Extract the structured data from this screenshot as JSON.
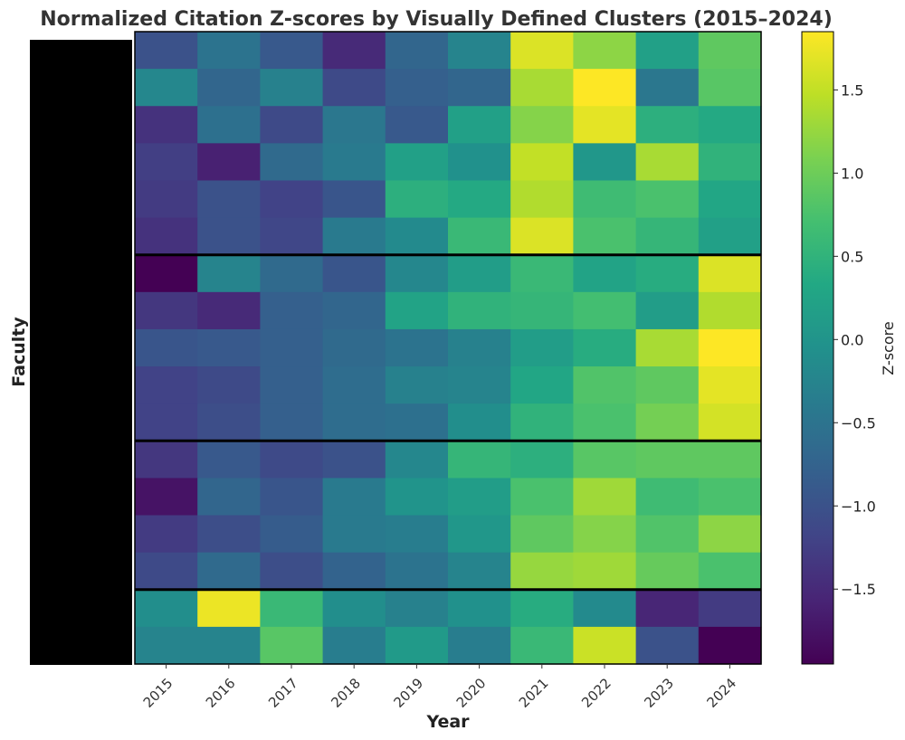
{
  "chart_data": {
    "type": "heatmap",
    "title": "Normalized Citation Z-scores by Visually Defined Clusters (2015–2024)",
    "xlabel": "Year",
    "ylabel": "Faculty",
    "colorbar_label": "Z-score",
    "x_categories": [
      "2015",
      "2016",
      "2017",
      "2018",
      "2019",
      "2020",
      "2021",
      "2022",
      "2023",
      "2024"
    ],
    "y_tick_labels": "redacted (black box)",
    "color_range": [
      -1.95,
      1.85
    ],
    "colorbar_ticks": [
      {
        "value": 1.5,
        "label": "1.5"
      },
      {
        "value": 1.0,
        "label": "1.0"
      },
      {
        "value": 0.5,
        "label": "0.5"
      },
      {
        "value": 0.0,
        "label": "0.0"
      },
      {
        "value": -0.5,
        "label": "−0.5"
      },
      {
        "value": -1.0,
        "label": "−1.0"
      },
      {
        "value": -1.5,
        "label": "−1.5"
      }
    ],
    "colormap": "viridis",
    "cluster_boundaries_after_rows": [
      6,
      11,
      15
    ],
    "values": [
      [
        -1.0,
        -0.5,
        -0.9,
        -1.5,
        -0.7,
        -0.25,
        1.65,
        1.2,
        0.2,
        0.9
      ],
      [
        -0.2,
        -0.7,
        -0.3,
        -1.1,
        -0.8,
        -0.7,
        1.35,
        1.85,
        -0.45,
        0.85
      ],
      [
        -1.4,
        -0.55,
        -1.1,
        -0.45,
        -0.9,
        0.2,
        1.15,
        1.7,
        0.45,
        0.35
      ],
      [
        -1.25,
        -1.6,
        -0.65,
        -0.4,
        0.2,
        -0.05,
        1.5,
        0.05,
        1.35,
        0.5
      ],
      [
        -1.3,
        -1.0,
        -1.2,
        -0.95,
        0.45,
        0.35,
        1.4,
        0.65,
        0.75,
        0.3
      ],
      [
        -1.4,
        -1.0,
        -1.15,
        -0.4,
        -0.15,
        0.6,
        1.65,
        0.75,
        0.55,
        0.2
      ],
      [
        -1.95,
        -0.25,
        -0.65,
        -0.95,
        -0.2,
        0.15,
        0.6,
        0.25,
        0.4,
        1.65
      ],
      [
        -1.35,
        -1.5,
        -0.8,
        -0.7,
        0.25,
        0.5,
        0.55,
        0.7,
        0.15,
        1.4
      ],
      [
        -0.95,
        -0.9,
        -0.8,
        -0.65,
        -0.5,
        -0.3,
        0.15,
        0.4,
        1.35,
        1.85
      ],
      [
        -1.2,
        -1.1,
        -0.8,
        -0.6,
        -0.3,
        -0.25,
        0.3,
        0.8,
        0.9,
        1.7
      ],
      [
        -1.2,
        -1.05,
        -0.8,
        -0.6,
        -0.55,
        -0.1,
        0.5,
        0.75,
        1.05,
        1.6
      ],
      [
        -1.35,
        -0.9,
        -1.1,
        -1.0,
        -0.2,
        0.55,
        0.45,
        0.85,
        0.9,
        0.9
      ],
      [
        -1.75,
        -0.7,
        -0.95,
        -0.4,
        0.0,
        0.15,
        0.75,
        1.3,
        0.65,
        0.75
      ],
      [
        -1.3,
        -1.05,
        -0.85,
        -0.4,
        -0.35,
        0.05,
        0.9,
        1.15,
        0.8,
        1.2
      ],
      [
        -1.1,
        -0.65,
        -1.05,
        -0.75,
        -0.5,
        -0.25,
        1.25,
        1.3,
        0.95,
        0.75
      ],
      [
        -0.1,
        1.75,
        0.6,
        -0.1,
        -0.3,
        -0.05,
        0.4,
        -0.15,
        -1.55,
        -1.3
      ],
      [
        -0.25,
        -0.25,
        0.85,
        -0.35,
        0.1,
        -0.35,
        0.6,
        1.55,
        -1.0,
        -1.95
      ]
    ]
  }
}
